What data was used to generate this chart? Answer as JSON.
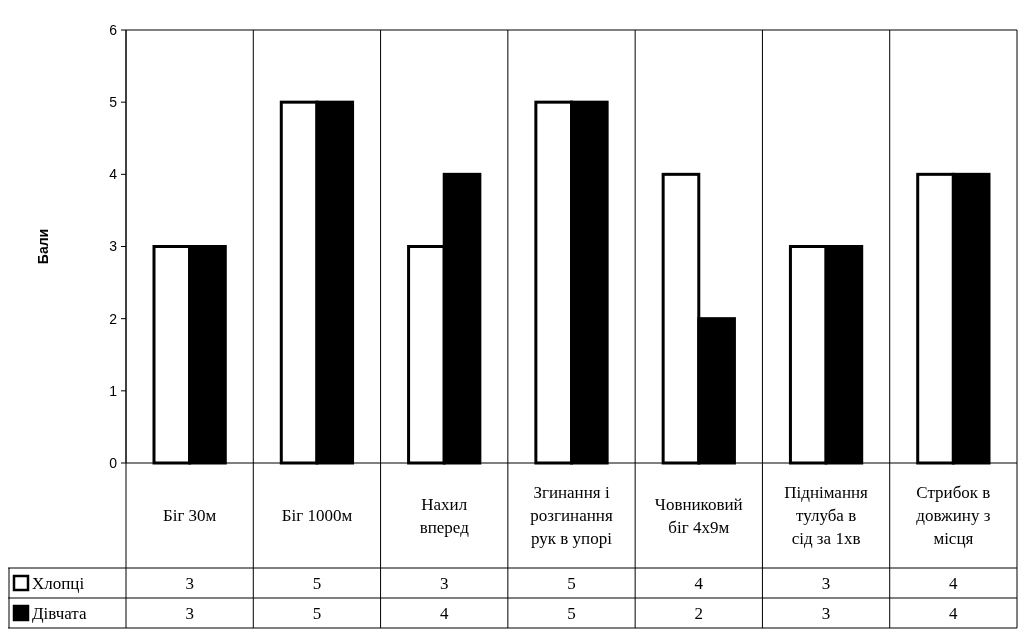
{
  "chart_data": {
    "type": "bar",
    "ylabel": "Бали",
    "categories": [
      "Біг 30м",
      "Біг 1000м",
      "Нахил вперед",
      "Згинання і розгинання рук в упорі",
      "Човниковий біг 4х9м",
      "Піднімання тулуба в сід за 1хв",
      "Стрибок в довжину з місця"
    ],
    "series": [
      {
        "name": "Хлопці",
        "color": "#ffffff",
        "values": [
          3,
          5,
          3,
          5,
          4,
          3,
          4
        ]
      },
      {
        "name": "Дівчата",
        "color": "#000000",
        "values": [
          3,
          5,
          4,
          5,
          2,
          3,
          4
        ]
      }
    ],
    "ylim": [
      0,
      6
    ],
    "yticks": [
      0,
      1,
      2,
      3,
      4,
      5,
      6
    ],
    "data_labels": true,
    "legend": "bottom"
  }
}
